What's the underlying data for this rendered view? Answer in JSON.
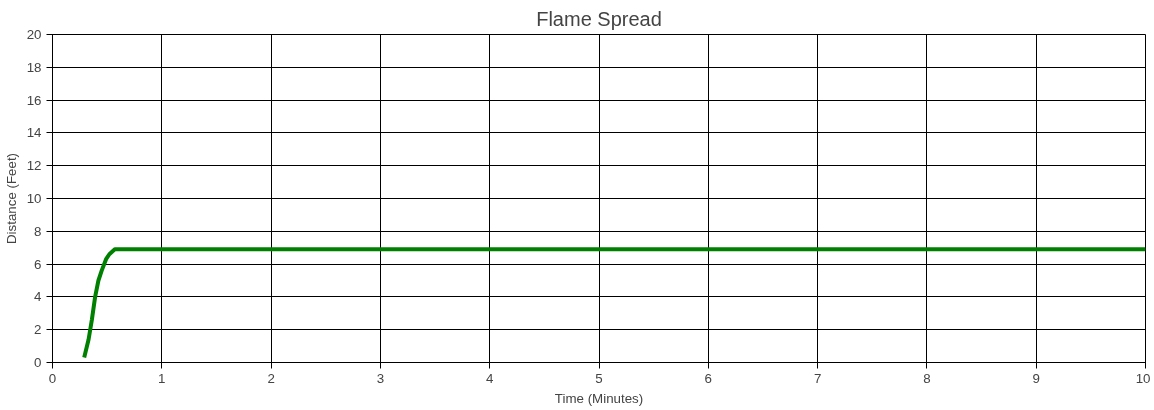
{
  "chart_data": {
    "type": "line",
    "title": "Flame Spread",
    "xlabel": "Time (Minutes)",
    "ylabel": "Distance (Feet)",
    "x": [
      0.29,
      0.33,
      0.36,
      0.39,
      0.42,
      0.45,
      0.49,
      0.52,
      0.57,
      1,
      2,
      3,
      4,
      5,
      6,
      7,
      8,
      9,
      10
    ],
    "series": [
      {
        "color": "#008000",
        "values": [
          0.3,
          1.4,
          2.6,
          4.0,
          5.0,
          5.6,
          6.3,
          6.6,
          6.9,
          6.9,
          6.9,
          6.9,
          6.9,
          6.9,
          6.9,
          6.9,
          6.9,
          6.9,
          6.9
        ]
      }
    ],
    "xlim": [
      0,
      10
    ],
    "xticks": [
      0,
      1,
      2,
      3,
      4,
      5,
      6,
      7,
      8,
      9,
      10
    ],
    "ylim": [
      0,
      20
    ],
    "yticks": [
      0,
      2,
      4,
      6,
      8,
      10,
      12,
      14,
      16,
      18,
      20
    ],
    "grid": true,
    "line_style": "solid",
    "marker": "none"
  }
}
